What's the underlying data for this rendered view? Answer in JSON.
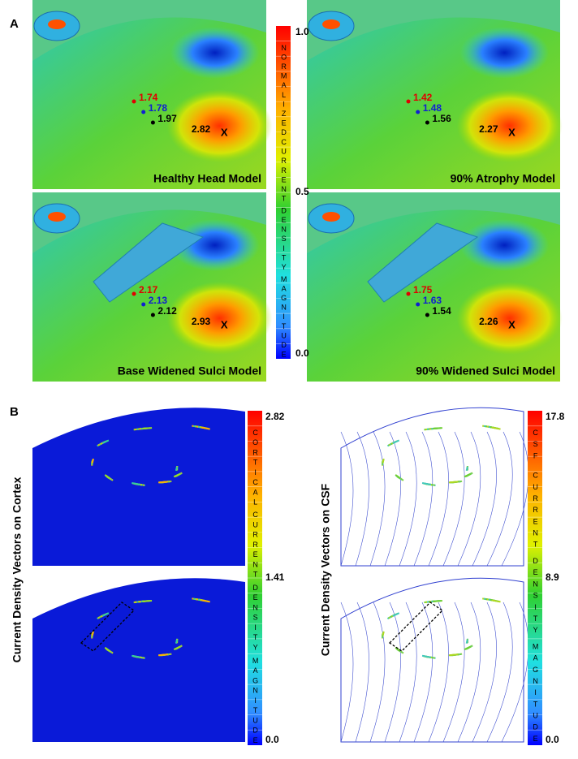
{
  "panel_a": {
    "label": "A",
    "colorbar": {
      "max": "1.0",
      "mid": "0.5",
      "min": "0.0",
      "words": [
        "NORMALIZED",
        "CURRENT",
        "DENSITY",
        "MAGNITUDE"
      ]
    },
    "models": [
      {
        "title": "Healthy Head Model",
        "red": "1.74",
        "blue": "1.78",
        "black": "1.97",
        "peak": "2.82",
        "peak_marker": "X"
      },
      {
        "title": "90% Atrophy Model",
        "red": "1.42",
        "blue": "1.48",
        "black": "1.56",
        "peak": "2.27",
        "peak_marker": "X"
      },
      {
        "title": "Base Widened Sulci Model",
        "red": "2.17",
        "blue": "2.13",
        "black": "2.12",
        "peak": "2.93",
        "peak_marker": "X"
      },
      {
        "title": "90% Widened Sulci Model",
        "red": "1.75",
        "blue": "1.63",
        "black": "1.54",
        "peak": "2.26",
        "peak_marker": "X"
      }
    ]
  },
  "panel_b": {
    "label": "B",
    "sides": [
      {
        "axis_label": "Current Density Vectors on Cortex",
        "colorbar": {
          "max": "2.82",
          "mid": "1.41",
          "min": "0.0",
          "words": [
            "CORTICAL",
            "CURRENT",
            "DENSITY",
            "MAGNITUDE"
          ]
        }
      },
      {
        "axis_label": "Current Density Vectors on CSF",
        "colorbar": {
          "max": "17.8",
          "mid": "8.9",
          "min": "0.0",
          "words": [
            "CSF",
            "CURRENT",
            "DENSITY",
            "MAGNITUDE"
          ]
        }
      }
    ]
  }
}
